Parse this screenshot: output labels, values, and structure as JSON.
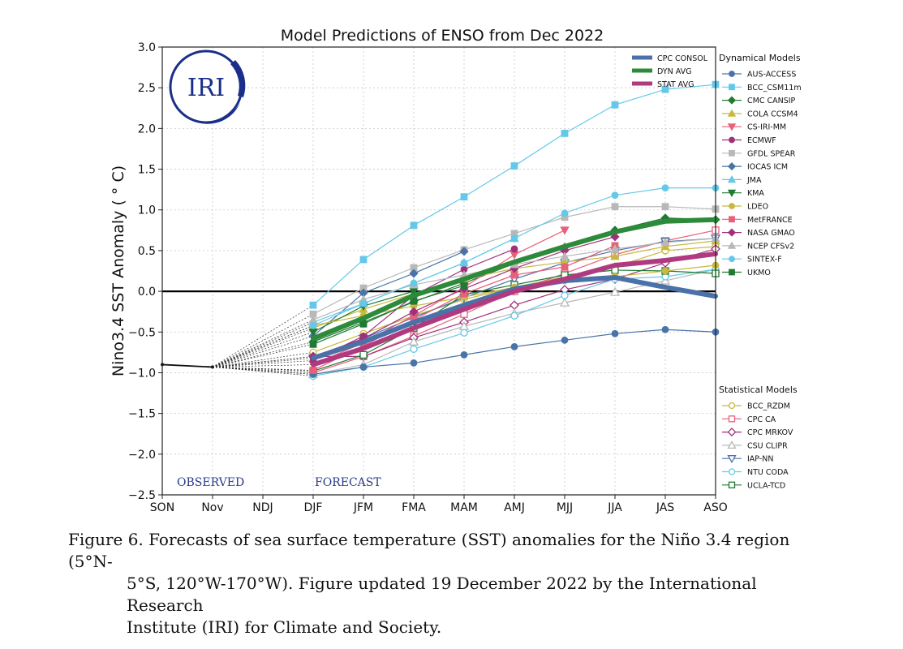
{
  "chart_data": {
    "type": "line",
    "title": "Model Predictions of ENSO from Dec 2022",
    "ylabel": "Nino3.4 SST Anomaly ( ° C)",
    "xlabel": "",
    "categories": [
      "SON",
      "Nov",
      "NDJ",
      "DJF",
      "JFM",
      "FMA",
      "MAM",
      "AMJ",
      "MJJ",
      "JJA",
      "JAS",
      "ASO"
    ],
    "ylim": [
      -2.5,
      3.0
    ],
    "yticks": [
      "3.0",
      "2.5",
      "2.0",
      "1.5",
      "1.0",
      "0.5",
      "0.0",
      "−0.5",
      "−1.0",
      "−1.5",
      "−2.0",
      "−2.5"
    ],
    "ytick_values": [
      3.0,
      2.5,
      2.0,
      1.5,
      1.0,
      0.5,
      0.0,
      -0.5,
      -1.0,
      -1.5,
      -2.0,
      -2.5
    ],
    "grid": true,
    "annotations": {
      "observed": "OBSERVED",
      "forecast": "FORECAST"
    },
    "logo_text": "IRI",
    "observed": {
      "values": [
        -0.9,
        -0.93
      ]
    },
    "averages_legend_placement": "top-right",
    "averages": [
      {
        "name": "CPC CONSOL",
        "color": "#4a72a8",
        "values": [
          -0.82,
          -0.62,
          -0.38,
          -0.17,
          0.03,
          0.13,
          0.17,
          0.05,
          -0.06
        ]
      },
      {
        "name": "DYN AVG",
        "color": "#2d8a3a",
        "values": [
          -0.58,
          -0.33,
          -0.05,
          0.15,
          0.36,
          0.55,
          0.73,
          0.86,
          0.88
        ]
      },
      {
        "name": "STAT AVG",
        "color": "#b03a7f",
        "values": [
          -0.9,
          -0.7,
          -0.45,
          -0.22,
          0.0,
          0.15,
          0.32,
          0.38,
          0.46
        ]
      }
    ],
    "dynamical_title": "Dynamical Models",
    "dynamical": [
      {
        "name": "AUS-ACCESS",
        "color": "#4a73a8",
        "marker": "circle",
        "values": [
          -1.02,
          -0.93,
          -0.88,
          -0.78,
          -0.68,
          -0.6,
          -0.52,
          -0.47,
          -0.5
        ]
      },
      {
        "name": "BCC_CSM11m",
        "color": "#65c8e8",
        "marker": "square",
        "values": [
          -0.17,
          0.39,
          0.81,
          1.16,
          1.54,
          1.94,
          2.29,
          2.48,
          2.54
        ]
      },
      {
        "name": "CMC CANSIP",
        "color": "#1f7a32",
        "marker": "diamond",
        "values": [
          -0.62,
          -0.38,
          -0.13,
          0.1,
          0.34,
          0.54,
          0.75,
          0.9,
          0.88
        ]
      },
      {
        "name": "COLA CCSM4",
        "color": "#c8b840",
        "marker": "triangle-up",
        "values": [
          -0.45,
          -0.22,
          -0.03,
          0.15,
          0.28,
          0.36,
          0.43,
          0.55,
          0.62
        ]
      },
      {
        "name": "CS-IRI-MM",
        "color": "#e8607a",
        "marker": "triangle-down",
        "values": [
          -0.9,
          -0.63,
          -0.3,
          0.05,
          0.45,
          0.75
        ]
      },
      {
        "name": "ECMWF",
        "color": "#a0307a",
        "marker": "circle",
        "values": [
          -0.85,
          -0.55,
          -0.05,
          0.27,
          0.52
        ]
      },
      {
        "name": "GFDL SPEAR",
        "color": "#b8b8b8",
        "marker": "square",
        "values": [
          -0.28,
          0.04,
          0.29,
          0.51,
          0.71,
          0.91,
          1.04,
          1.04,
          1.01
        ]
      },
      {
        "name": "IOCAS ICM",
        "color": "#4a73a8",
        "marker": "diamond",
        "values": [
          -0.55,
          -0.02,
          0.22,
          0.49
        ]
      },
      {
        "name": "JMA",
        "color": "#65c8e8",
        "marker": "triangle-up",
        "values": [
          -0.38,
          -0.15,
          0.1,
          0.35,
          0.65
        ]
      },
      {
        "name": "KMA",
        "color": "#1f7a32",
        "marker": "triangle-down",
        "values": [
          -0.5,
          -0.18,
          0.0
        ]
      },
      {
        "name": "LDEO",
        "color": "#c8b840",
        "marker": "circle",
        "values": [
          -0.42,
          -0.3,
          -0.18,
          -0.07,
          0.05,
          0.13,
          0.18,
          0.25,
          0.32
        ]
      },
      {
        "name": "MetFRANCE",
        "color": "#e8607a",
        "marker": "square",
        "values": [
          -0.97,
          -0.67,
          -0.35,
          -0.03,
          0.2,
          0.3,
          0.56
        ]
      },
      {
        "name": "NASA GMAO",
        "color": "#a0307a",
        "marker": "diamond",
        "values": [
          -0.8,
          -0.58,
          -0.25,
          0.03,
          0.28,
          0.5,
          0.67
        ]
      },
      {
        "name": "NCEP CFSv2",
        "color": "#b8b8b8",
        "marker": "triangle-up",
        "values": [
          -0.35,
          -0.1,
          0.08,
          0.2,
          0.33,
          0.43,
          0.52,
          0.6,
          0.65
        ]
      },
      {
        "name": "SINTEX-F",
        "color": "#65c8e8",
        "marker": "circle",
        "values": [
          -0.42,
          -0.15,
          0.1,
          0.35,
          0.65,
          0.96,
          1.18,
          1.27,
          1.27
        ]
      },
      {
        "name": "UKMO",
        "color": "#1f7a32",
        "marker": "square",
        "values": [
          -0.65,
          -0.4,
          -0.12,
          0.07
        ]
      }
    ],
    "statistical_title": "Statistical Models",
    "statistical": [
      {
        "name": "BCC_RZDM",
        "color": "#c8b840",
        "marker": "circle",
        "values": [
          -0.75,
          -0.52,
          -0.3,
          -0.1,
          0.05,
          0.18,
          0.3,
          0.5,
          0.55
        ]
      },
      {
        "name": "CPC CA",
        "color": "#e8607a",
        "marker": "square",
        "values": [
          -1.0,
          -0.8,
          -0.55,
          -0.28,
          0.0,
          0.22,
          0.45,
          0.62,
          0.75
        ]
      },
      {
        "name": "CPC MRKOV",
        "color": "#a0307a",
        "marker": "diamond",
        "values": [
          -0.8,
          -0.8,
          -0.57,
          -0.38,
          -0.17,
          0.02,
          0.15,
          0.35,
          0.52
        ]
      },
      {
        "name": "CSU CLIPR",
        "color": "#b8b8b8",
        "marker": "triangle-up",
        "values": [
          -1.02,
          -0.9,
          -0.62,
          -0.43,
          -0.27,
          -0.14,
          -0.01,
          0.13,
          0.27
        ]
      },
      {
        "name": "IAP-NN",
        "color": "#4a73a8",
        "marker": "triangle-down",
        "values": [
          -0.82,
          -0.58,
          -0.32,
          -0.08,
          0.15,
          0.35,
          0.5,
          0.61,
          0.65
        ]
      },
      {
        "name": "NTU CODA",
        "color": "#65c8e8",
        "marker": "circle",
        "values": [
          -1.04,
          -0.93,
          -0.71,
          -0.51,
          -0.3,
          -0.05,
          0.15,
          0.18,
          0.27
        ]
      },
      {
        "name": "UCLA-TCD",
        "color": "#1f7a32",
        "marker": "square",
        "values": [
          -0.98,
          -0.78,
          -0.45,
          -0.04,
          0.08,
          0.2,
          0.26,
          0.25,
          0.22
        ]
      }
    ]
  },
  "caption": {
    "line1": "Figure 6. Forecasts of sea surface temperature (SST) anomalies for the Niño 3.4 region (5°N-",
    "line2": "5°S, 120°W-170°W). Figure updated 19 December 2022 by the International Research",
    "line3": "Institute (IRI) for Climate and Society."
  }
}
